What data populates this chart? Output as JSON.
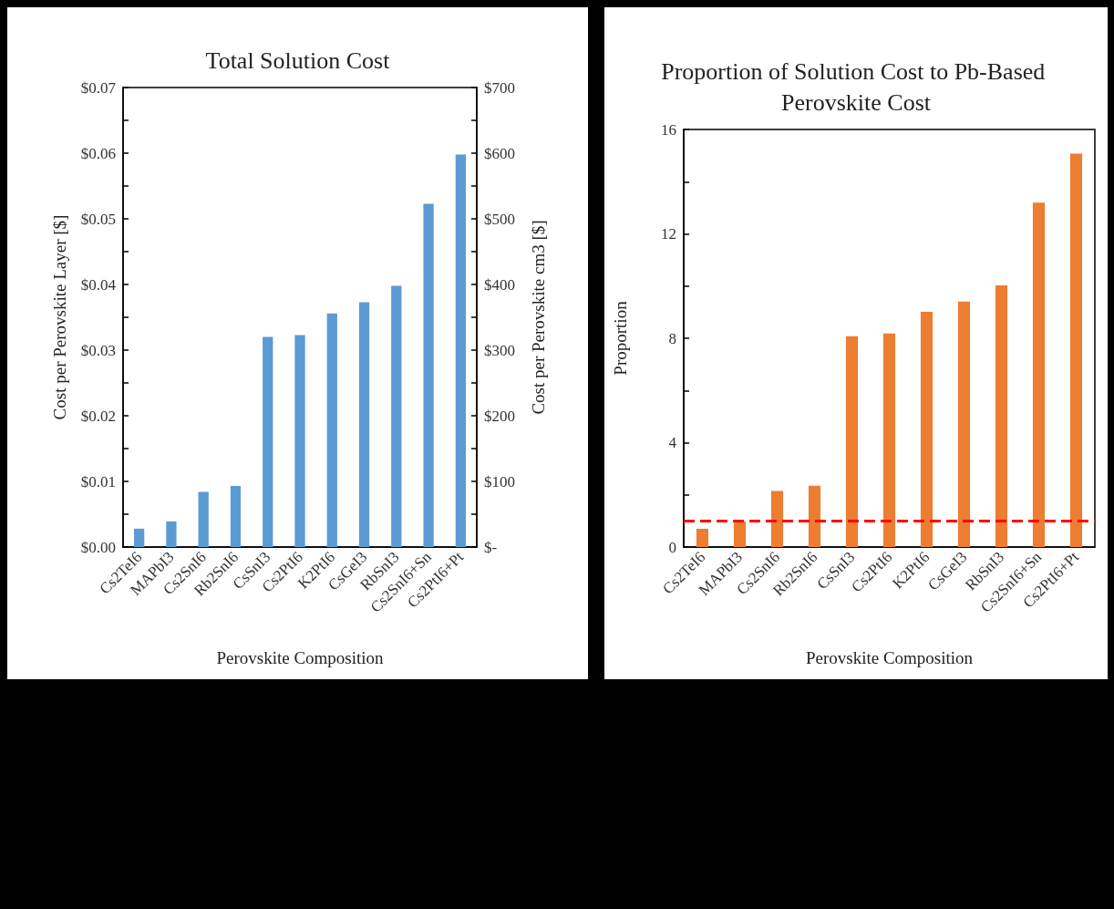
{
  "chart_data": [
    {
      "type": "bar",
      "title": "Total Solution Cost",
      "xlabel": "Perovskite Composition",
      "ylabel": "Cost per Perovskite Layer [$]",
      "y2label": "Cost per Perovskite cm3 [$]",
      "categories": [
        "Cs2TeI6",
        "MAPbI3",
        "Cs2SnI6",
        "Rb2SnI6",
        "CsSnI3",
        "Cs2PtI6",
        "K2PtI6",
        "CsGeI3",
        "RbSnI3",
        "Cs2SnI6+Sn",
        "Cs2PtI6+Pt"
      ],
      "values": [
        0.0028,
        0.0039,
        0.0084,
        0.0093,
        0.032,
        0.0323,
        0.0356,
        0.0373,
        0.0398,
        0.0523,
        0.0598
      ],
      "color": "#5b9bd5",
      "ylim": [
        0,
        0.07
      ],
      "yticks": [
        {
          "value": 0,
          "label": "$0.00"
        },
        {
          "value": 0.005,
          "label": null
        },
        {
          "value": 0.01,
          "label": "$0.01"
        },
        {
          "value": 0.015,
          "label": null
        },
        {
          "value": 0.02,
          "label": "$0.02"
        },
        {
          "value": 0.025,
          "label": null
        },
        {
          "value": 0.03,
          "label": "$0.03"
        },
        {
          "value": 0.035,
          "label": null
        },
        {
          "value": 0.04,
          "label": "$0.04"
        },
        {
          "value": 0.045,
          "label": null
        },
        {
          "value": 0.05,
          "label": "$0.05"
        },
        {
          "value": 0.055,
          "label": null
        },
        {
          "value": 0.06,
          "label": "$0.06"
        },
        {
          "value": 0.065,
          "label": null
        },
        {
          "value": 0.07,
          "label": "$0.07"
        }
      ],
      "y2lim": [
        0,
        700
      ],
      "y2ticks": [
        {
          "value": 0,
          "label": "$-"
        },
        {
          "value": 50,
          "label": null
        },
        {
          "value": 100,
          "label": "$100"
        },
        {
          "value": 150,
          "label": null
        },
        {
          "value": 200,
          "label": "$200"
        },
        {
          "value": 250,
          "label": null
        },
        {
          "value": 300,
          "label": "$300"
        },
        {
          "value": 350,
          "label": null
        },
        {
          "value": 400,
          "label": "$400"
        },
        {
          "value": 450,
          "label": null
        },
        {
          "value": 500,
          "label": "$500"
        },
        {
          "value": 550,
          "label": null
        },
        {
          "value": 600,
          "label": "$600"
        },
        {
          "value": 650,
          "label": null
        },
        {
          "value": 700,
          "label": "$700"
        }
      ],
      "grid": false
    },
    {
      "type": "bar",
      "title": "Proportion of Solution Cost to Pb-Based Perovskite Cost",
      "xlabel": "Perovskite Composition",
      "ylabel": "Proportion",
      "categories": [
        "Cs2TeI6",
        "MAPbI3",
        "Cs2SnI6",
        "Rb2SnI6",
        "CsSnI3",
        "Cs2PtI6",
        "K2PtI6",
        "CsGeI3",
        "RbSnI3",
        "Cs2SnI6+Sn",
        "Cs2PtI6+Pt"
      ],
      "values": [
        0.7,
        0.98,
        2.15,
        2.35,
        8.08,
        8.18,
        9.01,
        9.41,
        10.03,
        13.2,
        15.07
      ],
      "color": "#ed7d31",
      "ylim": [
        0,
        16
      ],
      "yticks": [
        0,
        {
          "value": 2,
          "label": null
        },
        4,
        {
          "value": 6,
          "label": null
        },
        8,
        {
          "value": 10,
          "label": null
        },
        12,
        {
          "value": 14,
          "label": null
        },
        16
      ],
      "ref_lines": [
        {
          "axis": "y",
          "value": 1,
          "color": "#ff0000",
          "line_style": "dashed"
        }
      ],
      "grid": false
    }
  ]
}
